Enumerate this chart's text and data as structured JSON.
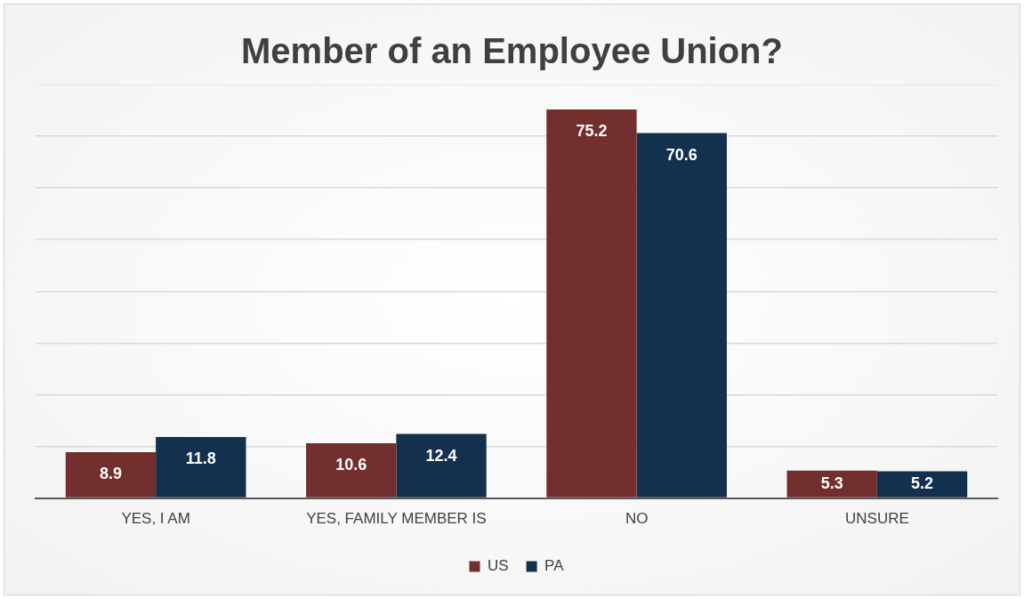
{
  "chart_data": {
    "type": "bar",
    "title": "Member of an Employee Union?",
    "categories": [
      "YES, I AM",
      "YES, FAMILY MEMBER IS",
      "NO",
      "UNSURE"
    ],
    "series": [
      {
        "name": "US",
        "color": "#722f2d",
        "values": [
          8.9,
          10.6,
          75.2,
          5.3
        ]
      },
      {
        "name": "PA",
        "color": "#14304f",
        "values": [
          11.8,
          12.4,
          70.6,
          5.2
        ]
      }
    ],
    "ylim": [
      0,
      80
    ],
    "yticks": [
      {
        "value": 0,
        "label": null
      },
      {
        "value": 10,
        "label": null
      },
      {
        "value": 20,
        "label": null
      },
      {
        "value": 30,
        "label": null
      },
      {
        "value": 40,
        "label": null
      },
      {
        "value": 50,
        "label": null
      },
      {
        "value": 60,
        "label": null
      },
      {
        "value": 70,
        "label": null
      },
      {
        "value": 80,
        "label": null
      }
    ],
    "tick_labels": "x",
    "grid": "y",
    "legend": "bottom",
    "data_labels": true
  }
}
